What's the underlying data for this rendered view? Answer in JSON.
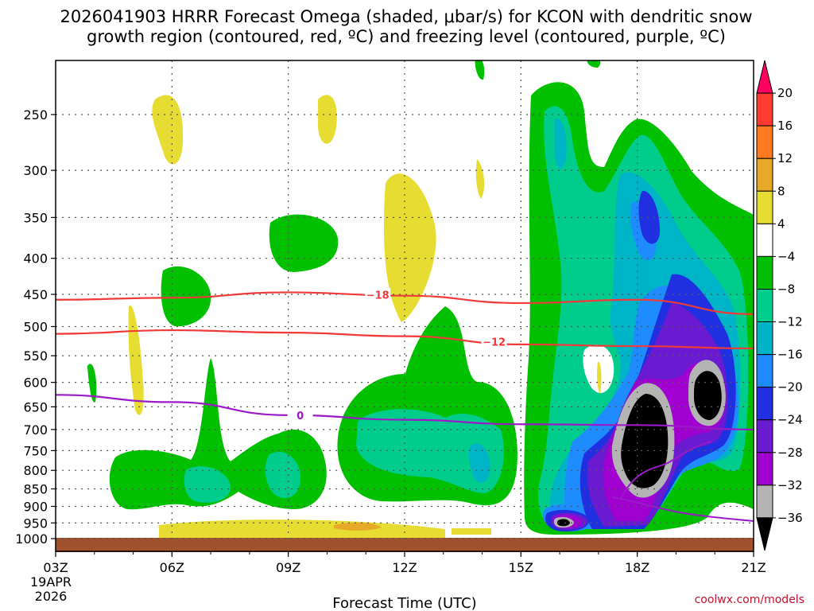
{
  "chart_data": {
    "type": "heatmap",
    "title_line1": "2026041903 HRRR Forecast Omega (shaded, μbar/s) for KCON with dendritic snow",
    "title_line2": "growth region (contoured, red, ºC) and freezing level (contoured, purple, ºC)",
    "xlabel": "Forecast Time (UTC)",
    "credit": "coolwx.com/models",
    "x_ticks": [
      "03Z",
      "06Z",
      "09Z",
      "12Z",
      "15Z",
      "18Z",
      "21Z"
    ],
    "x_date": [
      "19APR",
      "2026"
    ],
    "y_ticks": [
      250,
      300,
      350,
      400,
      450,
      500,
      550,
      600,
      650,
      700,
      750,
      800,
      850,
      900,
      950,
      1000
    ],
    "y_scale": "log-pressure (inverted)",
    "colorbar": {
      "labels": [
        "20",
        "16",
        "12",
        "8",
        "4",
        "−4",
        "−8",
        "−12",
        "−16",
        "−20",
        "−24",
        "−28",
        "−32",
        "−36"
      ],
      "colors": [
        "#ff0060",
        "#ff3b32",
        "#ff7a20",
        "#e8a828",
        "#e6dc32",
        "#ffffff",
        "#00c000",
        "#00cc8c",
        "#00b4c8",
        "#1e8cff",
        "#2030e0",
        "#6a1ad0",
        "#a000d0",
        "#b4b4b4",
        "#000000"
      ]
    },
    "contours": [
      {
        "label": "−18",
        "color": "#ef3a3a",
        "points": [
          [
            3,
            458
          ],
          [
            6,
            455
          ],
          [
            9,
            447
          ],
          [
            12,
            452
          ],
          [
            15,
            463
          ],
          [
            18,
            458
          ],
          [
            21,
            480
          ]
        ]
      },
      {
        "label": "−12",
        "color": "#ef3a3a",
        "points": [
          [
            3,
            512
          ],
          [
            6,
            506
          ],
          [
            9,
            510
          ],
          [
            12,
            516
          ],
          [
            15,
            530
          ],
          [
            18,
            533
          ],
          [
            21,
            537
          ]
        ]
      },
      {
        "label": "0",
        "color": "#9a1ac8",
        "points": [
          [
            3,
            625
          ],
          [
            6,
            640
          ],
          [
            9,
            668
          ],
          [
            12,
            678
          ],
          [
            15,
            688
          ],
          [
            18,
            690
          ],
          [
            21,
            700
          ]
        ]
      }
    ],
    "ground_color": "#a0522d"
  }
}
